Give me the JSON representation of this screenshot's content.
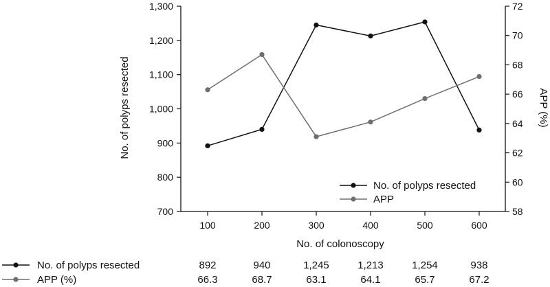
{
  "chart_data": {
    "type": "line",
    "x": [
      100,
      200,
      300,
      400,
      500,
      600
    ],
    "x_tick_labels": [
      "100",
      "200",
      "300",
      "400",
      "500",
      "600"
    ],
    "xlabel": "No. of colonoscopy",
    "ylabel_left": "No. of polyps resected",
    "ylabel_right": "APP (%)",
    "ylim_left": [
      700,
      1300
    ],
    "ylim_right": [
      58,
      72
    ],
    "y_left_ticks": [
      700,
      800,
      900,
      1000,
      1100,
      1200,
      1300
    ],
    "y_left_tick_labels": [
      "700",
      "800",
      "900",
      "1,000",
      "1,100",
      "1,200",
      "1,300"
    ],
    "y_right_ticks": [
      58,
      60,
      62,
      64,
      66,
      68,
      70,
      72
    ],
    "y_right_tick_labels": [
      "58",
      "60",
      "62",
      "64",
      "66",
      "68",
      "70",
      "72"
    ],
    "series": [
      {
        "name": "No. of polyps resected",
        "axis": "left",
        "color": "#111111",
        "values": [
          892,
          940,
          1245,
          1213,
          1254,
          938
        ],
        "value_labels": [
          "892",
          "940",
          "1,245",
          "1,213",
          "1,254",
          "938"
        ]
      },
      {
        "name": "APP",
        "axis": "right",
        "color": "#6e6e6e",
        "values": [
          66.3,
          68.7,
          63.1,
          64.1,
          65.7,
          67.2
        ],
        "value_labels": [
          "66.3",
          "68.7",
          "63.1",
          "64.1",
          "65.7",
          "67.2"
        ]
      }
    ],
    "legend": {
      "position": "bottom-right",
      "entries": [
        "No. of polyps resected",
        "APP"
      ]
    },
    "table": {
      "rows": [
        {
          "label": "No. of polyps resected",
          "series_index": 0,
          "values": [
            "892",
            "940",
            "1,245",
            "1,213",
            "1,254",
            "938"
          ]
        },
        {
          "label": "APP (%)",
          "series_index": 1,
          "values": [
            "66.3",
            "68.7",
            "63.1",
            "64.1",
            "65.7",
            "67.2"
          ]
        }
      ]
    },
    "grid": false
  }
}
